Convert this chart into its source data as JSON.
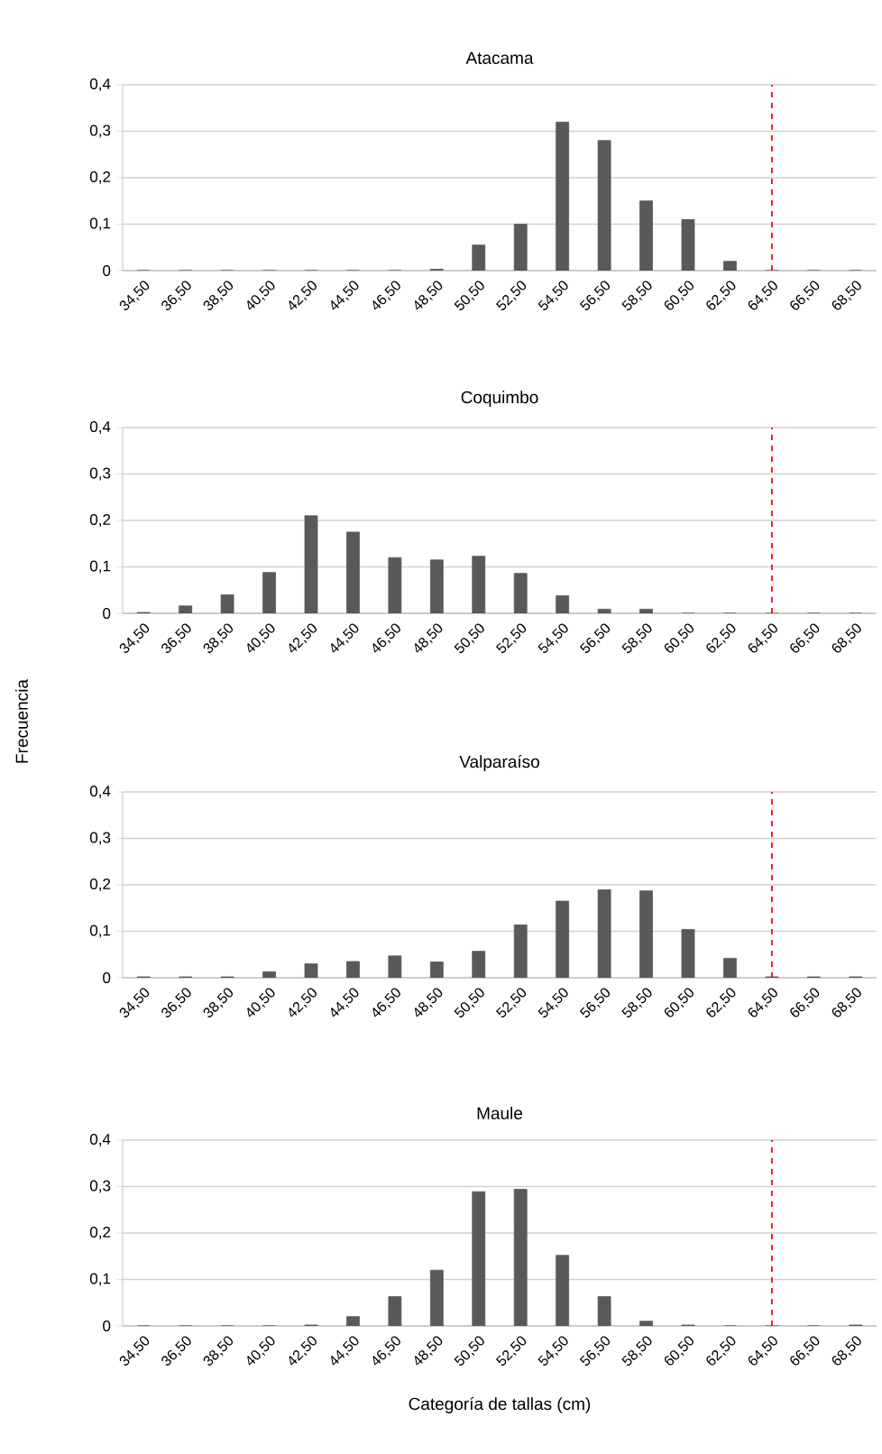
{
  "chart_data": [
    {
      "type": "bar",
      "title": "Atacama",
      "categories": [
        "34,50",
        "36,50",
        "38,50",
        "40,50",
        "42,50",
        "44,50",
        "46,50",
        "48,50",
        "50,50",
        "52,50",
        "54,50",
        "56,50",
        "58,50",
        "60,50",
        "62,50",
        "64,50",
        "66,50",
        "68,50"
      ],
      "values": [
        0,
        0,
        0,
        0,
        0,
        0,
        0,
        0.003,
        0.055,
        0.1,
        0.32,
        0.28,
        0.15,
        0.11,
        0.02,
        0,
        0,
        0
      ],
      "color": "#595959",
      "ylim": [
        0,
        0.4
      ],
      "yticks": [
        0,
        {
          "value": 0.1,
          "label": "0,1"
        },
        {
          "value": 0.2,
          "label": "0,2"
        },
        {
          "value": 0.3,
          "label": "0,3"
        },
        {
          "value": 0.4,
          "label": "0,4"
        }
      ],
      "grid": "y",
      "ref_lines": [
        {
          "axis": "x",
          "value": "64,50",
          "color": "#ff0000",
          "line_style": "dashed"
        }
      ]
    },
    {
      "type": "bar",
      "title": "Coquimbo",
      "ylabel": "Frecuencia",
      "categories": [
        "34,50",
        "36,50",
        "38,50",
        "40,50",
        "42,50",
        "44,50",
        "46,50",
        "48,50",
        "50,50",
        "52,50",
        "54,50",
        "56,50",
        "58,50",
        "60,50",
        "62,50",
        "64,50",
        "66,50",
        "68,50"
      ],
      "values": [
        0.002,
        0.016,
        0.04,
        0.088,
        0.21,
        0.175,
        0.12,
        0.115,
        0.123,
        0.086,
        0.038,
        0.009,
        0.009,
        0,
        0,
        0,
        0,
        0
      ],
      "color": "#595959",
      "ylim": [
        0,
        0.4
      ],
      "yticks": [
        0,
        {
          "value": 0.1,
          "label": "0,1"
        },
        {
          "value": 0.2,
          "label": "0,2"
        },
        {
          "value": 0.3,
          "label": "0,3"
        },
        {
          "value": 0.4,
          "label": "0,4"
        }
      ],
      "grid": "y",
      "ref_lines": [
        {
          "axis": "x",
          "value": "64,50",
          "color": "#ff0000",
          "line_style": "dashed"
        }
      ]
    },
    {
      "type": "bar",
      "title": "Valparaíso",
      "categories": [
        "34,50",
        "36,50",
        "38,50",
        "40,50",
        "42,50",
        "44,50",
        "46,50",
        "48,50",
        "50,50",
        "52,50",
        "54,50",
        "56,50",
        "58,50",
        "60,50",
        "62,50",
        "64,50",
        "66,50",
        "68,50"
      ],
      "values": [
        0.002,
        0.002,
        0.002,
        0.013,
        0.03,
        0.035,
        0.047,
        0.034,
        0.057,
        0.114,
        0.165,
        0.19,
        0.187,
        0.104,
        0.042,
        0.002,
        0.002,
        0.002
      ],
      "color": "#595959",
      "ylim": [
        0,
        0.4
      ],
      "yticks": [
        0,
        {
          "value": 0.1,
          "label": "0,1"
        },
        {
          "value": 0.2,
          "label": "0,2"
        },
        {
          "value": 0.3,
          "label": "0,3"
        },
        {
          "value": 0.4,
          "label": "0,4"
        }
      ],
      "grid": "y",
      "ref_lines": [
        {
          "axis": "x",
          "value": "64,50",
          "color": "#ff0000",
          "line_style": "dashed"
        }
      ]
    },
    {
      "type": "bar",
      "title": "Maule",
      "xlabel": "Categoría de tallas (cm)",
      "categories": [
        "34,50",
        "36,50",
        "38,50",
        "40,50",
        "42,50",
        "44,50",
        "46,50",
        "48,50",
        "50,50",
        "52,50",
        "54,50",
        "56,50",
        "58,50",
        "60,50",
        "62,50",
        "64,50",
        "66,50",
        "68,50"
      ],
      "values": [
        0,
        0,
        0,
        0,
        0.002,
        0.02,
        0.063,
        0.12,
        0.289,
        0.294,
        0.152,
        0.063,
        0.01,
        0.002,
        0,
        0,
        0,
        0.002
      ],
      "color": "#595959",
      "ylim": [
        0,
        0.4
      ],
      "yticks": [
        0,
        {
          "value": 0.1,
          "label": "0,1"
        },
        {
          "value": 0.2,
          "label": "0,2"
        },
        {
          "value": 0.3,
          "label": "0,3"
        },
        {
          "value": 0.4,
          "label": "0,4"
        }
      ],
      "grid": "y",
      "ref_lines": [
        {
          "axis": "x",
          "value": "64,50",
          "color": "#ff0000",
          "line_style": "dashed"
        }
      ]
    }
  ]
}
